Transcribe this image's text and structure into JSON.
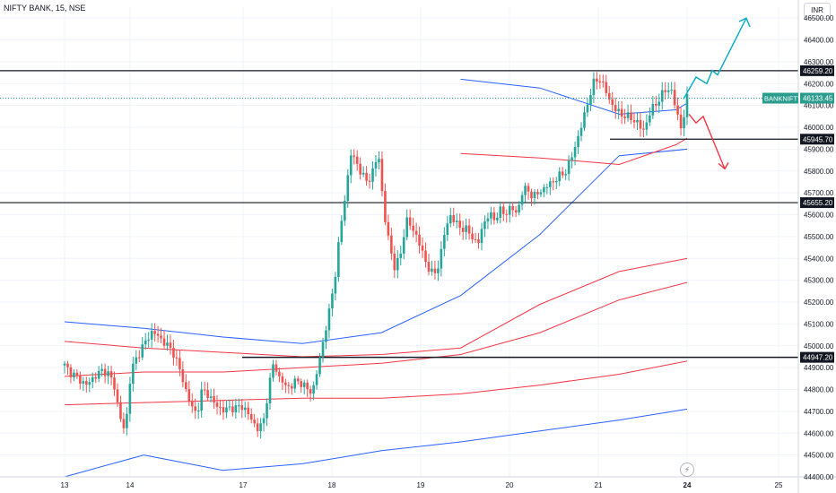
{
  "header": {
    "title": "NIFTY BANK, 15, NSE",
    "currency": "INR"
  },
  "icons": {
    "flash": "lightning-icon"
  },
  "colors": {
    "up": "#26a69a",
    "down": "#ef5350",
    "blue": "#2962ff",
    "red": "#f23645",
    "teal": "#00acc1",
    "grid": "#f0f3fa",
    "axis": "#131722",
    "label": "#2a9d8f"
  },
  "chart_data": {
    "type": "candlestick",
    "x_ticks": [
      "13",
      "14",
      "17",
      "18",
      "19",
      "20",
      "21",
      "24",
      "25"
    ],
    "y_range": [
      44400,
      46550
    ],
    "y_ticks": [
      "44400.00",
      "44500.00",
      "44600.00",
      "44700.00",
      "44800.00",
      "44900.00",
      "45000.00",
      "45100.00",
      "45200.00",
      "45300.00",
      "45400.00",
      "45500.00",
      "45600.00",
      "45700.00",
      "45800.00",
      "45900.00",
      "46000.00",
      "46100.00",
      "46200.00",
      "46300.00",
      "46400.00",
      "46500.00"
    ],
    "levels": [
      {
        "value": 46259.2,
        "label": "46259.20"
      },
      {
        "value": 45945.7,
        "label": "45945.70"
      },
      {
        "value": 45655.2,
        "label": "45655.20"
      },
      {
        "value": 44947.2,
        "label": "44947.20"
      }
    ],
    "last_price": {
      "symbol": "BANKNIFTY",
      "value": 46133.45,
      "label": "46133.45"
    },
    "close_path": [
      44910,
      44880,
      44860,
      44840,
      44820,
      44850,
      44870,
      44890,
      44870,
      44820,
      44680,
      44600,
      44880,
      44940,
      44990,
      45030,
      45070,
      45040,
      45020,
      44990,
      44960,
      44880,
      44800,
      44720,
      44690,
      44800,
      44780,
      44740,
      44720,
      44700,
      44720,
      44710,
      44730,
      44700,
      44660,
      44620,
      44640,
      44800,
      44930,
      44850,
      44820,
      44810,
      44840,
      44830,
      44800,
      44790,
      44900,
      45030,
      45150,
      45300,
      45520,
      45700,
      45880,
      45840,
      45780,
      45750,
      45800,
      45880,
      45600,
      45460,
      45350,
      45420,
      45580,
      45540,
      45500,
      45420,
      45360,
      45320,
      45380,
      45520,
      45600,
      45560,
      45540,
      45530,
      45500,
      45460,
      45560,
      45600,
      45580,
      45620,
      45600,
      45640,
      45600,
      45700,
      45720,
      45680,
      45700,
      45720,
      45740,
      45760,
      45780,
      45800,
      45860,
      45940,
      46020,
      46120,
      46200,
      46230,
      46180,
      46120,
      46080,
      46060,
      46050,
      46040,
      46020,
      45980,
      46050,
      46100,
      46130,
      46170,
      46180,
      46080,
      45990,
      46133.45
    ],
    "series": [
      {
        "color": "#2962ff",
        "values": [
          [
            44400,
            45110
          ],
          [
            44750,
            45080
          ],
          [
            45100,
            45040
          ],
          [
            45450,
            45010
          ],
          [
            45800,
            45060
          ],
          [
            46150,
            45230
          ],
          [
            46500,
            45510
          ],
          [
            46850,
            45870
          ],
          [
            47150,
            45900
          ]
        ]
      },
      {
        "color": "#2962ff",
        "values": [
          [
            44400,
            44400
          ],
          [
            44750,
            44500
          ],
          [
            45100,
            44430
          ],
          [
            45450,
            44460
          ],
          [
            45800,
            44520
          ],
          [
            46150,
            44560
          ],
          [
            46500,
            44610
          ],
          [
            46850,
            44660
          ],
          [
            47150,
            44710
          ]
        ]
      },
      {
        "color": "#f23645",
        "values": [
          [
            44400,
            45020
          ],
          [
            44750,
            44990
          ],
          [
            45100,
            44970
          ],
          [
            45450,
            44950
          ],
          [
            45800,
            44960
          ],
          [
            46150,
            44990
          ],
          [
            46500,
            45190
          ],
          [
            46850,
            45340
          ],
          [
            47150,
            45400
          ]
        ]
      },
      {
        "color": "#f23645",
        "values": [
          [
            44400,
            44860
          ],
          [
            44750,
            44880
          ],
          [
            45100,
            44880
          ],
          [
            45450,
            44900
          ],
          [
            45800,
            44920
          ],
          [
            46150,
            44960
          ],
          [
            46500,
            45060
          ],
          [
            46850,
            45210
          ],
          [
            47150,
            45290
          ]
        ]
      },
      {
        "color": "#f23645",
        "values": [
          [
            44400,
            44730
          ],
          [
            44750,
            44740
          ],
          [
            45100,
            44750
          ],
          [
            45450,
            44760
          ],
          [
            45800,
            44760
          ],
          [
            46150,
            44780
          ],
          [
            46500,
            44820
          ],
          [
            46850,
            44870
          ],
          [
            47150,
            44930
          ]
        ]
      },
      {
        "color": "#2962ff",
        "values": [
          [
            46150,
            46220
          ],
          [
            46500,
            46180
          ],
          [
            46850,
            46060
          ],
          [
            47100,
            46080
          ],
          [
            47150,
            46110
          ]
        ]
      },
      {
        "color": "#f23645",
        "values": [
          [
            46150,
            45880
          ],
          [
            46500,
            45860
          ],
          [
            46850,
            45830
          ],
          [
            47100,
            45920
          ],
          [
            47150,
            45950
          ]
        ]
      }
    ]
  }
}
